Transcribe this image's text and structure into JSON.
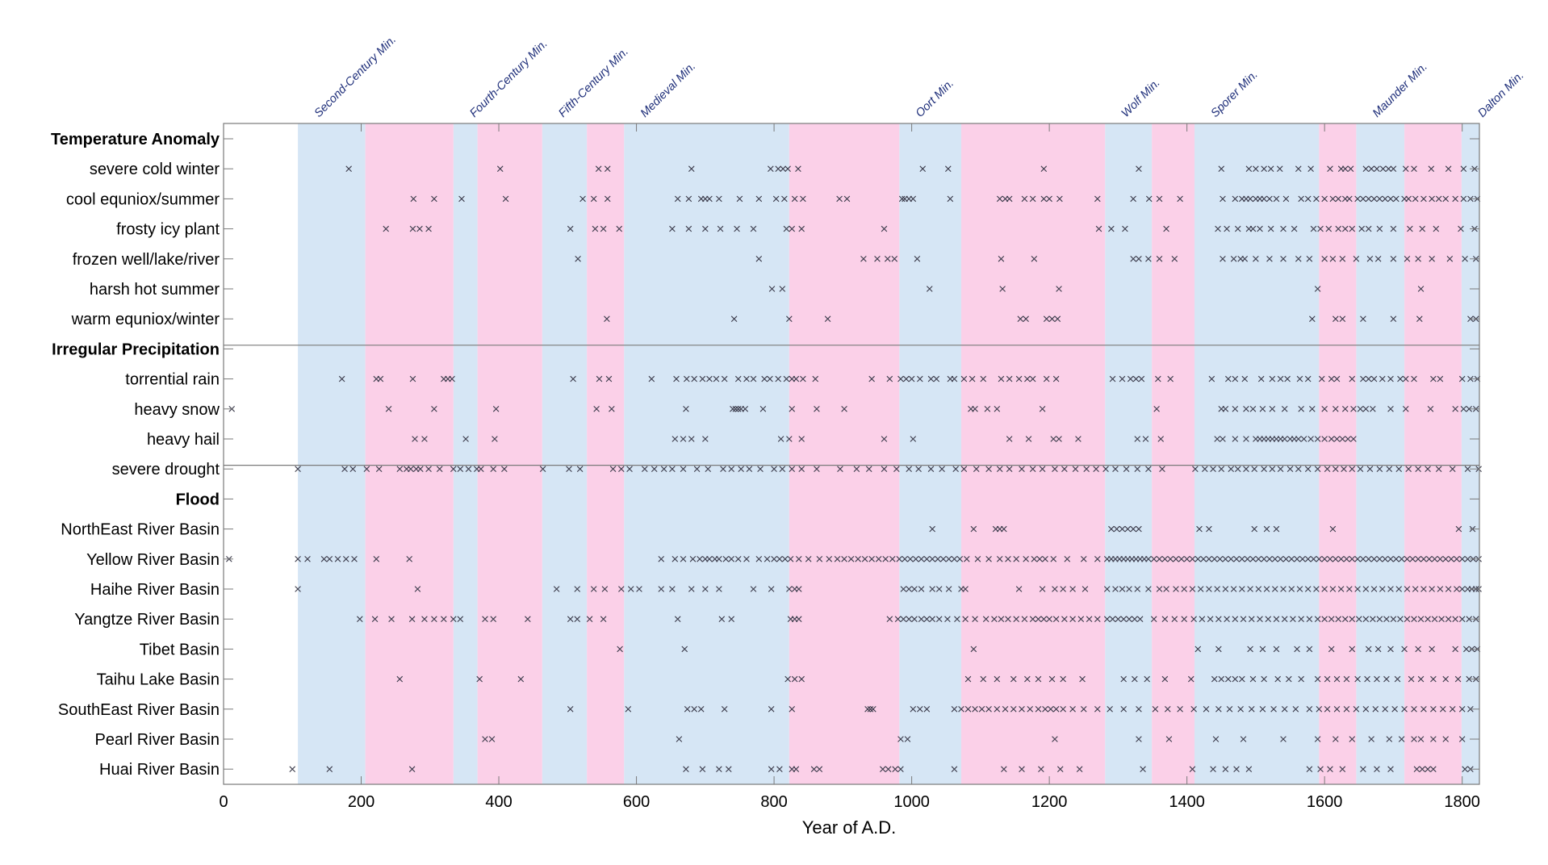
{
  "chart_data": {
    "type": "scatter",
    "xlabel": "Year of A.D.",
    "xlim": [
      0,
      1825
    ],
    "xticks": [
      0,
      200,
      400,
      600,
      800,
      1000,
      1200,
      1400,
      1600,
      1800
    ],
    "colors": {
      "blue_band": "#d6e6f5",
      "pink_band": "#fbd0e8",
      "marker": "#3a3a4a",
      "label": "#1f2f7a",
      "axis": "#7a7a7a"
    },
    "solar_minima": [
      {
        "name": "Second-Century Min.",
        "start": 108,
        "end": 206
      },
      {
        "name": "Fourth-Century Min.",
        "start": 334,
        "end": 369
      },
      {
        "name": "Fifth-Century Min.",
        "start": 463,
        "end": 528
      },
      {
        "name": "Medieval Min.",
        "start": 582,
        "end": 822
      },
      {
        "name": "Oort Min.",
        "start": 982,
        "end": 1072
      },
      {
        "name": "Wolf Min.",
        "start": 1281,
        "end": 1349
      },
      {
        "name": "Sporer Min.",
        "start": 1411,
        "end": 1592
      },
      {
        "name": "Maunder Min.",
        "start": 1646,
        "end": 1716
      },
      {
        "name": "Dalton Min.",
        "start": 1799,
        "end": 1825
      }
    ],
    "pink_intervals": [
      [
        206,
        334
      ],
      [
        369,
        463
      ],
      [
        528,
        582
      ],
      [
        822,
        982
      ],
      [
        1072,
        1281
      ],
      [
        1349,
        1411
      ],
      [
        1592,
        1646
      ],
      [
        1716,
        1799
      ]
    ],
    "rows": [
      {
        "label": "Temperature Anomaly",
        "header": true,
        "events": []
      },
      {
        "label": "severe cold winter",
        "events": [
          182,
          402,
          545,
          558,
          680,
          795,
          806,
          813,
          820,
          835,
          1016,
          1053,
          1192,
          1330,
          1450,
          1490,
          1500,
          1512,
          1522,
          1535,
          1562,
          1580,
          1608,
          1624,
          1630,
          1638,
          1660,
          1668,
          1676,
          1685,
          1693,
          1700,
          1718,
          1730,
          1755,
          1780,
          1802,
          1818
        ]
      },
      {
        "label": "cool equniox/summer",
        "events": [
          276,
          306,
          346,
          410,
          522,
          538,
          558,
          660,
          676,
          694,
          700,
          706,
          720,
          750,
          778,
          803,
          815,
          830,
          842,
          895,
          906,
          986,
          990,
          996,
          1002,
          1056,
          1128,
          1136,
          1142,
          1164,
          1176,
          1192,
          1200,
          1215,
          1270,
          1322,
          1345,
          1360,
          1390,
          1452,
          1470,
          1480,
          1486,
          1492,
          1500,
          1506,
          1512,
          1520,
          1530,
          1544,
          1566,
          1576,
          1588,
          1600,
          1612,
          1620,
          1630,
          1636,
          1648,
          1656,
          1664,
          1672,
          1680,
          1688,
          1696,
          1704,
          1716,
          1722,
          1732,
          1744,
          1756,
          1766,
          1776,
          1790,
          1802,
          1812,
          1822
        ]
      },
      {
        "label": "frosty icy plant",
        "events": [
          236,
          275,
          285,
          298,
          504,
          540,
          552,
          575,
          652,
          676,
          700,
          722,
          746,
          770,
          818,
          826,
          840,
          960,
          1272,
          1290,
          1310,
          1370,
          1445,
          1458,
          1474,
          1490,
          1496,
          1506,
          1522,
          1540,
          1556,
          1584,
          1594,
          1606,
          1620,
          1630,
          1640,
          1654,
          1664,
          1680,
          1700,
          1724,
          1742,
          1762,
          1798,
          1818
        ]
      },
      {
        "label": "frozen well/lake/river",
        "events": [
          515,
          778,
          930,
          950,
          965,
          975,
          1008,
          1130,
          1178,
          1322,
          1330,
          1344,
          1360,
          1382,
          1452,
          1468,
          1478,
          1484,
          1500,
          1520,
          1540,
          1562,
          1578,
          1600,
          1612,
          1626,
          1646,
          1666,
          1678,
          1700,
          1720,
          1736,
          1756,
          1782,
          1804,
          1820
        ]
      },
      {
        "label": "harsh hot summer",
        "events": [
          797,
          812,
          1026,
          1132,
          1214,
          1590,
          1740
        ]
      },
      {
        "label": "warm equniox/winter",
        "events": [
          557,
          742,
          822,
          878,
          1158,
          1166,
          1196,
          1204,
          1212,
          1582,
          1616,
          1626,
          1656,
          1700,
          1738,
          1812,
          1820
        ]
      },
      {
        "label": "Irregular Precipitation",
        "header": true,
        "events": []
      },
      {
        "label": "torrential rain",
        "events": [
          172,
          222,
          228,
          275,
          320,
          326,
          332,
          508,
          546,
          560,
          622,
          658,
          673,
          684,
          696,
          706,
          716,
          728,
          748,
          760,
          770,
          786,
          794,
          806,
          818,
          826,
          832,
          842,
          860,
          942,
          968,
          984,
          992,
          1000,
          1012,
          1028,
          1036,
          1056,
          1062,
          1076,
          1088,
          1104,
          1130,
          1142,
          1156,
          1168,
          1176,
          1196,
          1210,
          1292,
          1306,
          1318,
          1326,
          1334,
          1358,
          1376,
          1436,
          1460,
          1470,
          1484,
          1508,
          1524,
          1536,
          1546,
          1564,
          1576,
          1596,
          1610,
          1618,
          1640,
          1656,
          1664,
          1672,
          1684,
          1696,
          1710,
          1718,
          1730,
          1758,
          1768,
          1800,
          1812,
          1822
        ]
      },
      {
        "label": "heavy snow",
        "events": [
          12,
          240,
          306,
          396,
          542,
          564,
          672,
          740,
          744,
          748,
          752,
          758,
          784,
          826,
          862,
          902,
          1086,
          1092,
          1110,
          1124,
          1190,
          1356,
          1450,
          1456,
          1470,
          1486,
          1496,
          1510,
          1524,
          1542,
          1566,
          1582,
          1600,
          1616,
          1630,
          1642,
          1652,
          1660,
          1670,
          1696,
          1718,
          1754,
          1790,
          1802,
          1810,
          1820
        ]
      },
      {
        "label": "heavy hail",
        "events": [
          278,
          292,
          352,
          394,
          656,
          668,
          680,
          700,
          810,
          822,
          840,
          960,
          1002,
          1142,
          1170,
          1206,
          1214,
          1242,
          1328,
          1340,
          1362,
          1444,
          1452,
          1470,
          1486,
          1500,
          1506,
          1512,
          1518,
          1524,
          1530,
          1536,
          1542,
          1550,
          1556,
          1562,
          1570,
          1580,
          1590,
          1600,
          1610,
          1618,
          1626,
          1634,
          1642
        ]
      },
      {
        "label": "severe drought",
        "events": [
          108,
          176,
          188,
          208,
          226,
          256,
          266,
          272,
          280,
          286,
          298,
          314,
          334,
          344,
          356,
          368,
          374,
          392,
          408,
          464,
          502,
          518,
          566,
          578,
          590,
          612,
          626,
          640,
          652,
          668,
          688,
          704,
          726,
          738,
          752,
          764,
          780,
          800,
          812,
          826,
          840,
          862,
          896,
          920,
          938,
          960,
          978,
          996,
          1010,
          1028,
          1044,
          1064,
          1076,
          1094,
          1112,
          1128,
          1142,
          1160,
          1176,
          1190,
          1208,
          1222,
          1238,
          1254,
          1268,
          1282,
          1296,
          1312,
          1328,
          1344,
          1364,
          1412,
          1426,
          1438,
          1450,
          1464,
          1474,
          1486,
          1498,
          1512,
          1524,
          1536,
          1550,
          1562,
          1576,
          1590,
          1604,
          1616,
          1628,
          1640,
          1652,
          1666,
          1680,
          1694,
          1708,
          1722,
          1736,
          1750,
          1766,
          1786,
          1808,
          1824
        ]
      },
      {
        "label": "Flood",
        "header": true,
        "events": []
      },
      {
        "label": "NorthEast River Basin",
        "events": [
          1030,
          1090,
          1122,
          1128,
          1134,
          1290,
          1298,
          1306,
          1314,
          1322,
          1330,
          1418,
          1432,
          1498,
          1516,
          1530,
          1612,
          1795,
          1815
        ]
      },
      {
        "label": "Yellow River Basin",
        "events": [
          8,
          108,
          122,
          146,
          154,
          166,
          178,
          190,
          222,
          270,
          636,
          656,
          668,
          682,
          692,
          700,
          706,
          714,
          720,
          730,
          738,
          748,
          760,
          778,
          790,
          800,
          808,
          816,
          824,
          836,
          850,
          866,
          880,
          892,
          902,
          912,
          922,
          932,
          942,
          952,
          962,
          972,
          982,
          990,
          998,
          1006,
          1014,
          1022,
          1030,
          1038,
          1046,
          1054,
          1062,
          1070,
          1080,
          1096,
          1112,
          1128,
          1140,
          1152,
          1166,
          1178,
          1186,
          1194,
          1206,
          1226,
          1250,
          1270,
          1284,
          1290,
          1296,
          1302,
          1308,
          1314,
          1320,
          1326,
          1332,
          1338,
          1344,
          1352,
          1360,
          1368,
          1376,
          1384,
          1392,
          1400,
          1408,
          1416,
          1424,
          1432,
          1440,
          1448,
          1456,
          1464,
          1472,
          1480,
          1488,
          1496,
          1504,
          1512,
          1520,
          1528,
          1536,
          1544,
          1552,
          1560,
          1568,
          1576,
          1584,
          1592,
          1600,
          1608,
          1616,
          1624,
          1632,
          1640,
          1648,
          1656,
          1664,
          1672,
          1680,
          1688,
          1696,
          1704,
          1712,
          1720,
          1728,
          1736,
          1744,
          1752,
          1760,
          1768,
          1776,
          1784,
          1792,
          1800,
          1808,
          1816,
          1824
        ]
      },
      {
        "label": "Haihe River Basin",
        "events": [
          108,
          282,
          484,
          514,
          538,
          554,
          578,
          592,
          604,
          636,
          652,
          680,
          700,
          720,
          770,
          796,
          822,
          830,
          836,
          988,
          996,
          1004,
          1014,
          1030,
          1040,
          1054,
          1072,
          1078,
          1156,
          1190,
          1208,
          1220,
          1234,
          1252,
          1284,
          1296,
          1306,
          1316,
          1328,
          1344,
          1360,
          1370,
          1384,
          1396,
          1408,
          1420,
          1432,
          1444,
          1456,
          1468,
          1480,
          1492,
          1504,
          1516,
          1528,
          1540,
          1552,
          1564,
          1576,
          1588,
          1600,
          1612,
          1624,
          1636,
          1648,
          1660,
          1672,
          1684,
          1696,
          1708,
          1720,
          1732,
          1744,
          1756,
          1768,
          1780,
          1792,
          1800,
          1808,
          1814,
          1820,
          1824
        ]
      },
      {
        "label": "Yangtze River Basin",
        "events": [
          198,
          220,
          244,
          274,
          292,
          306,
          320,
          334,
          344,
          380,
          392,
          442,
          504,
          514,
          532,
          552,
          660,
          724,
          738,
          824,
          830,
          836,
          968,
          980,
          988,
          996,
          1004,
          1014,
          1022,
          1030,
          1040,
          1052,
          1066,
          1078,
          1092,
          1108,
          1120,
          1130,
          1140,
          1152,
          1164,
          1176,
          1184,
          1192,
          1200,
          1210,
          1222,
          1234,
          1246,
          1258,
          1270,
          1284,
          1292,
          1300,
          1308,
          1316,
          1324,
          1332,
          1352,
          1368,
          1382,
          1396,
          1410,
          1422,
          1434,
          1446,
          1458,
          1470,
          1482,
          1494,
          1506,
          1518,
          1530,
          1542,
          1554,
          1566,
          1578,
          1590,
          1600,
          1610,
          1620,
          1630,
          1640,
          1650,
          1660,
          1670,
          1680,
          1690,
          1700,
          1710,
          1720,
          1730,
          1740,
          1750,
          1760,
          1770,
          1780,
          1790,
          1800,
          1810,
          1820
        ]
      },
      {
        "label": "Tibet Basin",
        "events": [
          576,
          670,
          1090,
          1416,
          1446,
          1492,
          1510,
          1530,
          1560,
          1578,
          1610,
          1640,
          1664,
          1678,
          1696,
          1716,
          1736,
          1756,
          1790,
          1806,
          1814,
          1822
        ]
      },
      {
        "label": "Taihu Lake Basin",
        "events": [
          256,
          372,
          432,
          820,
          830,
          840,
          1082,
          1104,
          1124,
          1148,
          1168,
          1184,
          1204,
          1220,
          1248,
          1308,
          1324,
          1342,
          1368,
          1406,
          1440,
          1450,
          1460,
          1470,
          1480,
          1496,
          1512,
          1532,
          1548,
          1566,
          1590,
          1604,
          1618,
          1632,
          1648,
          1662,
          1676,
          1690,
          1706,
          1726,
          1740,
          1758,
          1776,
          1794,
          1810,
          1820
        ]
      },
      {
        "label": "SouthEast River Basin",
        "events": [
          504,
          588,
          674,
          684,
          694,
          728,
          796,
          826,
          936,
          940,
          944,
          1002,
          1012,
          1022,
          1062,
          1072,
          1082,
          1092,
          1102,
          1112,
          1124,
          1136,
          1148,
          1160,
          1172,
          1184,
          1194,
          1202,
          1210,
          1220,
          1234,
          1250,
          1270,
          1288,
          1308,
          1330,
          1354,
          1372,
          1390,
          1410,
          1428,
          1446,
          1462,
          1478,
          1494,
          1510,
          1526,
          1542,
          1558,
          1578,
          1592,
          1604,
          1618,
          1632,
          1646,
          1660,
          1674,
          1688,
          1702,
          1716,
          1730,
          1744,
          1758,
          1772,
          1786,
          1800,
          1812
        ]
      },
      {
        "label": "Pearl River Basin",
        "events": [
          380,
          390,
          662,
          984,
          994,
          1208,
          1330,
          1374,
          1442,
          1482,
          1540,
          1590,
          1616,
          1640,
          1668,
          1694,
          1712,
          1730,
          1740,
          1758,
          1776,
          1800
        ]
      },
      {
        "label": "Huai River Basin",
        "events": [
          100,
          154,
          274,
          672,
          696,
          720,
          734,
          796,
          808,
          826,
          832,
          858,
          866,
          958,
          966,
          976,
          984,
          1062,
          1134,
          1160,
          1188,
          1216,
          1244,
          1336,
          1408,
          1438,
          1456,
          1472,
          1490,
          1578,
          1594,
          1608,
          1626,
          1656,
          1676,
          1696,
          1734,
          1742,
          1750,
          1758,
          1804,
          1812
        ]
      }
    ]
  }
}
